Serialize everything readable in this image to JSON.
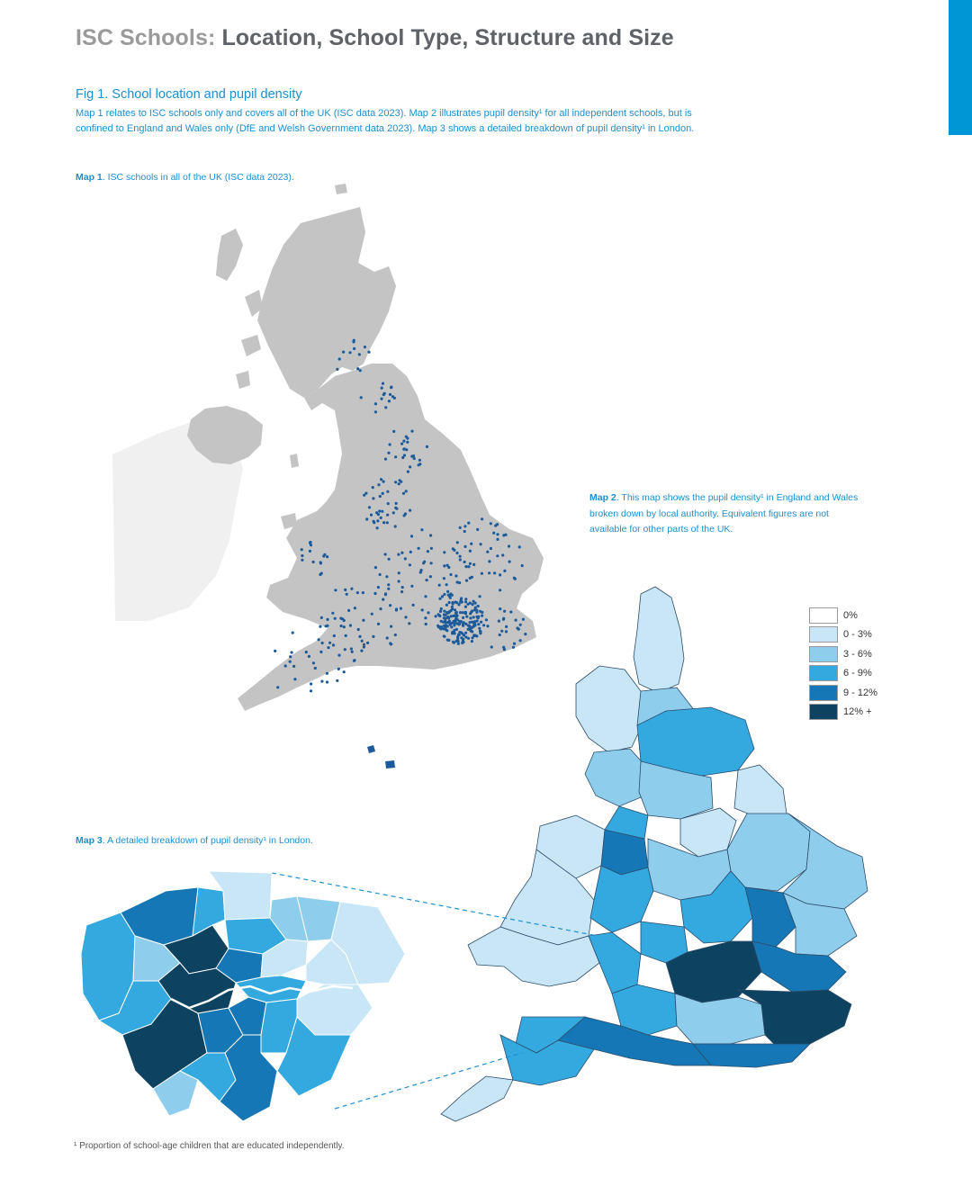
{
  "header": {
    "title_prefix": "ISC Schools:",
    "title_rest": "Location, School Type, Structure and Size"
  },
  "figure": {
    "heading": "Fig 1. School location and pupil density",
    "description_line1": "Map 1 relates to ISC schools only and covers all of the UK (ISC data 2023). Map 2 illustrates pupil density¹ for all independent schools, but is",
    "description_line2": "confined to England and Wales only (DfE and Welsh Government data 2023). Map 3 shows a detailed breakdown of pupil density¹ in London."
  },
  "map1": {
    "label": "Map 1",
    "caption": ". ISC schools in all of the UK (ISC data 2023)."
  },
  "map2": {
    "label": "Map 2",
    "caption": ". This map shows the pupil density¹ in England and Wales broken down by local authority. Equivalent figures are not available for other parts of the UK."
  },
  "map3": {
    "label": "Map 3",
    "caption": ". A detailed breakdown of pupil density¹ in London."
  },
  "legend": [
    {
      "label": "0%",
      "color": "#ffffff"
    },
    {
      "label": "0 - 3%",
      "color": "#c8e6f6"
    },
    {
      "label": "3 - 6%",
      "color": "#8ecdec"
    },
    {
      "label": "6 - 9%",
      "color": "#33a9df"
    },
    {
      "label": "9 - 12%",
      "color": "#1677b6"
    },
    {
      "label": "12% +",
      "color": "#0d4261"
    }
  ],
  "footnote": "¹ Proportion of school-age children that are educated independently.",
  "colors": {
    "accent": "#0096d6",
    "title_grey": "#9a9a9a",
    "text_blue": "#1a8fd1",
    "land_grey": "#c4c4c4",
    "dot_blue": "#1d5a99"
  }
}
